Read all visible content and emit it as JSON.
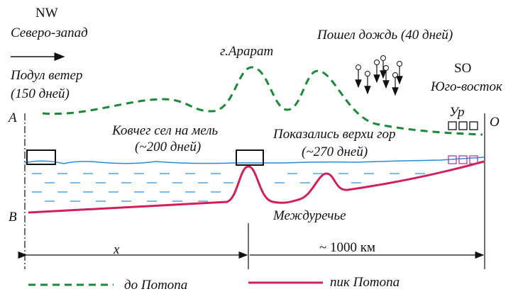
{
  "labels": {
    "nw": "NW",
    "nw_name": "Северо-запад",
    "wind": "Подул ветер",
    "wind_days": "(150 дней)",
    "ararat": "г.Арарат",
    "rain": "Пошел дождь (40 дней)",
    "so": "SO",
    "so_name": "Юго-восток",
    "level": "Ур",
    "o": "O",
    "a": "A",
    "b": "B",
    "ark": "Ковчег сел на мель",
    "ark_days": "(~200 дней)",
    "peaks": "Показались верхи гор",
    "peaks_days": "(~270 дней)",
    "mesopotamia": "Междуречье",
    "x": "x",
    "distance": "~ 1000 км"
  },
  "legend": [
    "до Потопа",
    "пик Потопа"
  ]
}
